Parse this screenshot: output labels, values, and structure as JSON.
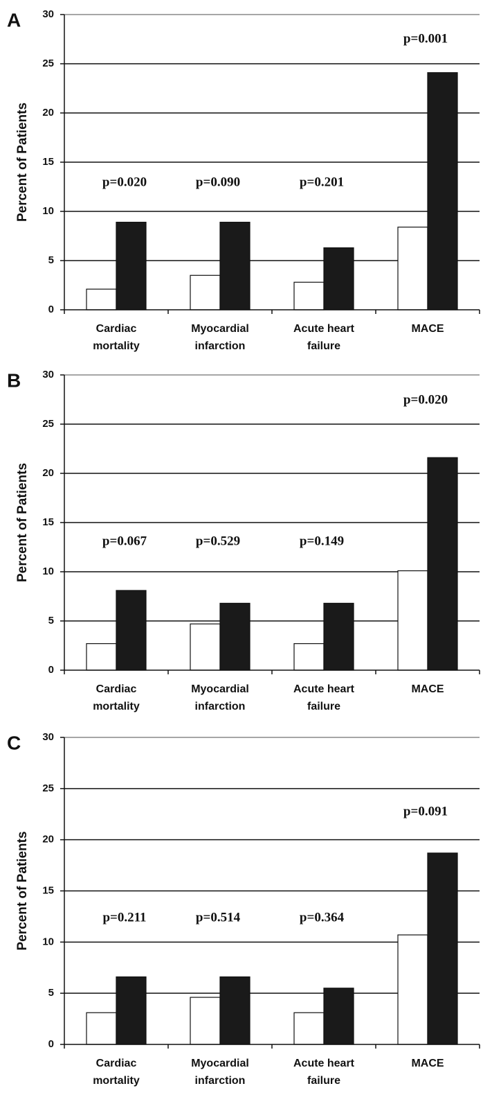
{
  "chart_data": [
    {
      "type": "bar",
      "panel": "A",
      "y_label": "Percent of Patients",
      "categories": [
        [
          "Cardiac",
          "mortality"
        ],
        [
          "Myocardial",
          "infarction"
        ],
        [
          "Acute heart",
          "failure"
        ],
        [
          "MACE"
        ]
      ],
      "series": [
        {
          "color": "#ffffff",
          "values": [
            2.1,
            3.5,
            2.8,
            8.4
          ]
        },
        {
          "color": "#1a1a1a",
          "values": [
            8.9,
            8.9,
            6.3,
            24.1
          ]
        }
      ],
      "annotations": [
        "p=0.020",
        "p=0.090",
        "p=0.201",
        "p=0.001"
      ],
      "ylim": [
        0,
        30
      ],
      "yticks": [
        0,
        5,
        10,
        15,
        20,
        25,
        30
      ],
      "grid": true
    },
    {
      "type": "bar",
      "panel": "B",
      "y_label": "Percent of Patients",
      "categories": [
        [
          "Cardiac",
          "mortality"
        ],
        [
          "Myocardial",
          "infarction"
        ],
        [
          "Acute heart",
          "failure"
        ],
        [
          "MACE"
        ]
      ],
      "series": [
        {
          "color": "#ffffff",
          "values": [
            2.7,
            4.7,
            2.7,
            10.1
          ]
        },
        {
          "color": "#1a1a1a",
          "values": [
            8.1,
            6.8,
            6.8,
            21.6
          ]
        }
      ],
      "annotations": [
        "p=0.067",
        "p=0.529",
        "p=0.149",
        "p=0.020"
      ],
      "ylim": [
        0,
        30
      ],
      "yticks": [
        0,
        5,
        10,
        15,
        20,
        25,
        30
      ],
      "grid": true
    },
    {
      "type": "bar",
      "panel": "C",
      "y_label": "Percent of Patients",
      "categories": [
        [
          "Cardiac",
          "mortality"
        ],
        [
          "Myocardial",
          "infarction"
        ],
        [
          "Acute heart",
          "failure"
        ],
        [
          "MACE"
        ]
      ],
      "series": [
        {
          "color": "#ffffff",
          "values": [
            3.1,
            4.6,
            3.1,
            10.7
          ]
        },
        {
          "color": "#1a1a1a",
          "values": [
            6.6,
            6.6,
            5.5,
            18.7
          ]
        }
      ],
      "annotations": [
        "p=0.211",
        "p=0.514",
        "p=0.364",
        "p=0.091"
      ],
      "ylim": [
        0,
        30
      ],
      "yticks": [
        0,
        5,
        10,
        15,
        20,
        25,
        30
      ],
      "grid": true
    }
  ]
}
